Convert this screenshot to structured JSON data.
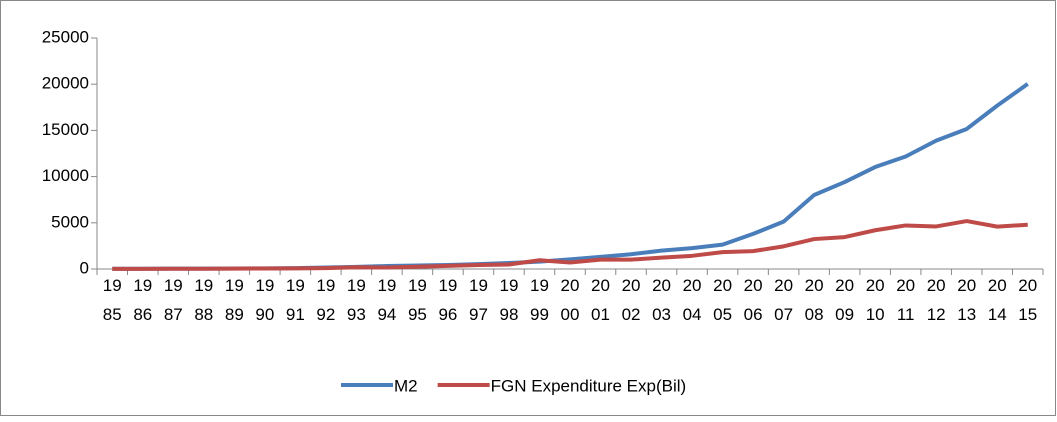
{
  "chart_data": {
    "type": "line",
    "categories": [
      "1985",
      "1986",
      "1987",
      "1988",
      "1989",
      "1990",
      "1991",
      "1992",
      "1993",
      "1994",
      "1995",
      "1996",
      "1997",
      "1998",
      "1999",
      "2000",
      "2001",
      "2002",
      "2003",
      "2004",
      "2005",
      "2006",
      "2007",
      "2008",
      "2009",
      "2010",
      "2011",
      "2012",
      "2013",
      "2014",
      "2015"
    ],
    "series": [
      {
        "name": "M2",
        "color": "#4a7ebb",
        "values": [
          27,
          29,
          37,
          47,
          48,
          69,
          95,
          156,
          235,
          318,
          376,
          430,
          523,
          648,
          800,
          1036,
          1316,
          1600,
          1986,
          2264,
          2638,
          3797,
          5127,
          8009,
          9412,
          11035,
          12173,
          13895,
          15155,
          17680,
          20029
        ]
      },
      {
        "name": "FGN Expenditure Exp(Bil)",
        "color": "#be4b48",
        "values": [
          12,
          16,
          22,
          27,
          41,
          60,
          66,
          92,
          191,
          160,
          249,
          337,
          428,
          487,
          947,
          701,
          1018,
          1018,
          1226,
          1426,
          1822,
          1938,
          2450,
          3240,
          3453,
          4195,
          4712,
          4605,
          5186,
          4587,
          4789
        ]
      }
    ],
    "ylim": [
      0,
      25000
    ],
    "yticks": [
      0,
      5000,
      10000,
      15000,
      20000,
      25000
    ],
    "grid": false,
    "legend": "bottom"
  }
}
